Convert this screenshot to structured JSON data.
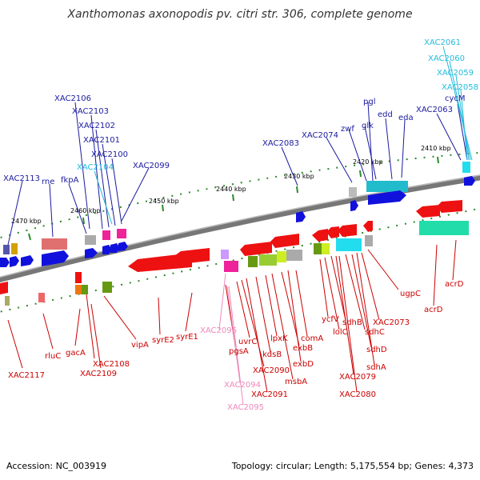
{
  "title": "Xanthomonas axonopodis pv. citri str. 306, complete genome",
  "accession": "Accession: NC_003919",
  "summary": "Topology: circular; Length: 5,175,554 bp; Genes: 4,373",
  "colors": {
    "upper_label": "#1a1aa0",
    "upper_cyan": "#22bbdd",
    "lower_label": "#cc0000",
    "lower_pink": "#ee88bb",
    "backbone": "#888888",
    "tick": "#2a8a2a"
  },
  "ticks": [
    {
      "label": "2470 kbp"
    },
    {
      "label": "2460 kbp"
    },
    {
      "label": "2450 kbp"
    },
    {
      "label": "2440 kbp"
    },
    {
      "label": "2430 kbp"
    },
    {
      "label": "2420 kbp"
    },
    {
      "label": "2410 kbp"
    }
  ],
  "upper_genes": [
    {
      "name": "XAC2113"
    },
    {
      "name": "rne"
    },
    {
      "name": "fkpA"
    },
    {
      "name": "XAC2106"
    },
    {
      "name": "XAC2103"
    },
    {
      "name": "XAC2102"
    },
    {
      "name": "XAC2101"
    },
    {
      "name": "XAC2100"
    },
    {
      "name": "XAC2104"
    },
    {
      "name": "XAC2099"
    },
    {
      "name": "XAC2083"
    },
    {
      "name": "XAC2074"
    },
    {
      "name": "zwf"
    },
    {
      "name": "pgl"
    },
    {
      "name": "glk"
    },
    {
      "name": "edd"
    },
    {
      "name": "eda"
    },
    {
      "name": "XAC2063"
    },
    {
      "name": "XAC2061"
    },
    {
      "name": "XAC2060"
    },
    {
      "name": "XAC2059"
    },
    {
      "name": "XAC2058"
    },
    {
      "name": "cycM"
    }
  ],
  "lower_genes": [
    {
      "name": "XAC2117"
    },
    {
      "name": "rluC"
    },
    {
      "name": "gacA"
    },
    {
      "name": "XAC2108"
    },
    {
      "name": "XAC2109"
    },
    {
      "name": "vipA"
    },
    {
      "name": "syrE2"
    },
    {
      "name": "syrE1"
    },
    {
      "name": "XAC2096"
    },
    {
      "name": "pgsA"
    },
    {
      "name": "XAC2094"
    },
    {
      "name": "XAC2095"
    },
    {
      "name": "uvrC"
    },
    {
      "name": "XAC2090"
    },
    {
      "name": "XAC2091"
    },
    {
      "name": "kdsB"
    },
    {
      "name": "lpxK"
    },
    {
      "name": "msbA"
    },
    {
      "name": "exbB"
    },
    {
      "name": "exbD"
    },
    {
      "name": "comA"
    },
    {
      "name": "ycfV"
    },
    {
      "name": "lolC"
    },
    {
      "name": "sdhB"
    },
    {
      "name": "XAC2079"
    },
    {
      "name": "XAC2080"
    },
    {
      "name": "sdhC"
    },
    {
      "name": "sdhD"
    },
    {
      "name": "sdhA"
    },
    {
      "name": "XAC2073"
    },
    {
      "name": "ugpC"
    },
    {
      "name": "acrD"
    },
    {
      "name": "acrD"
    }
  ]
}
